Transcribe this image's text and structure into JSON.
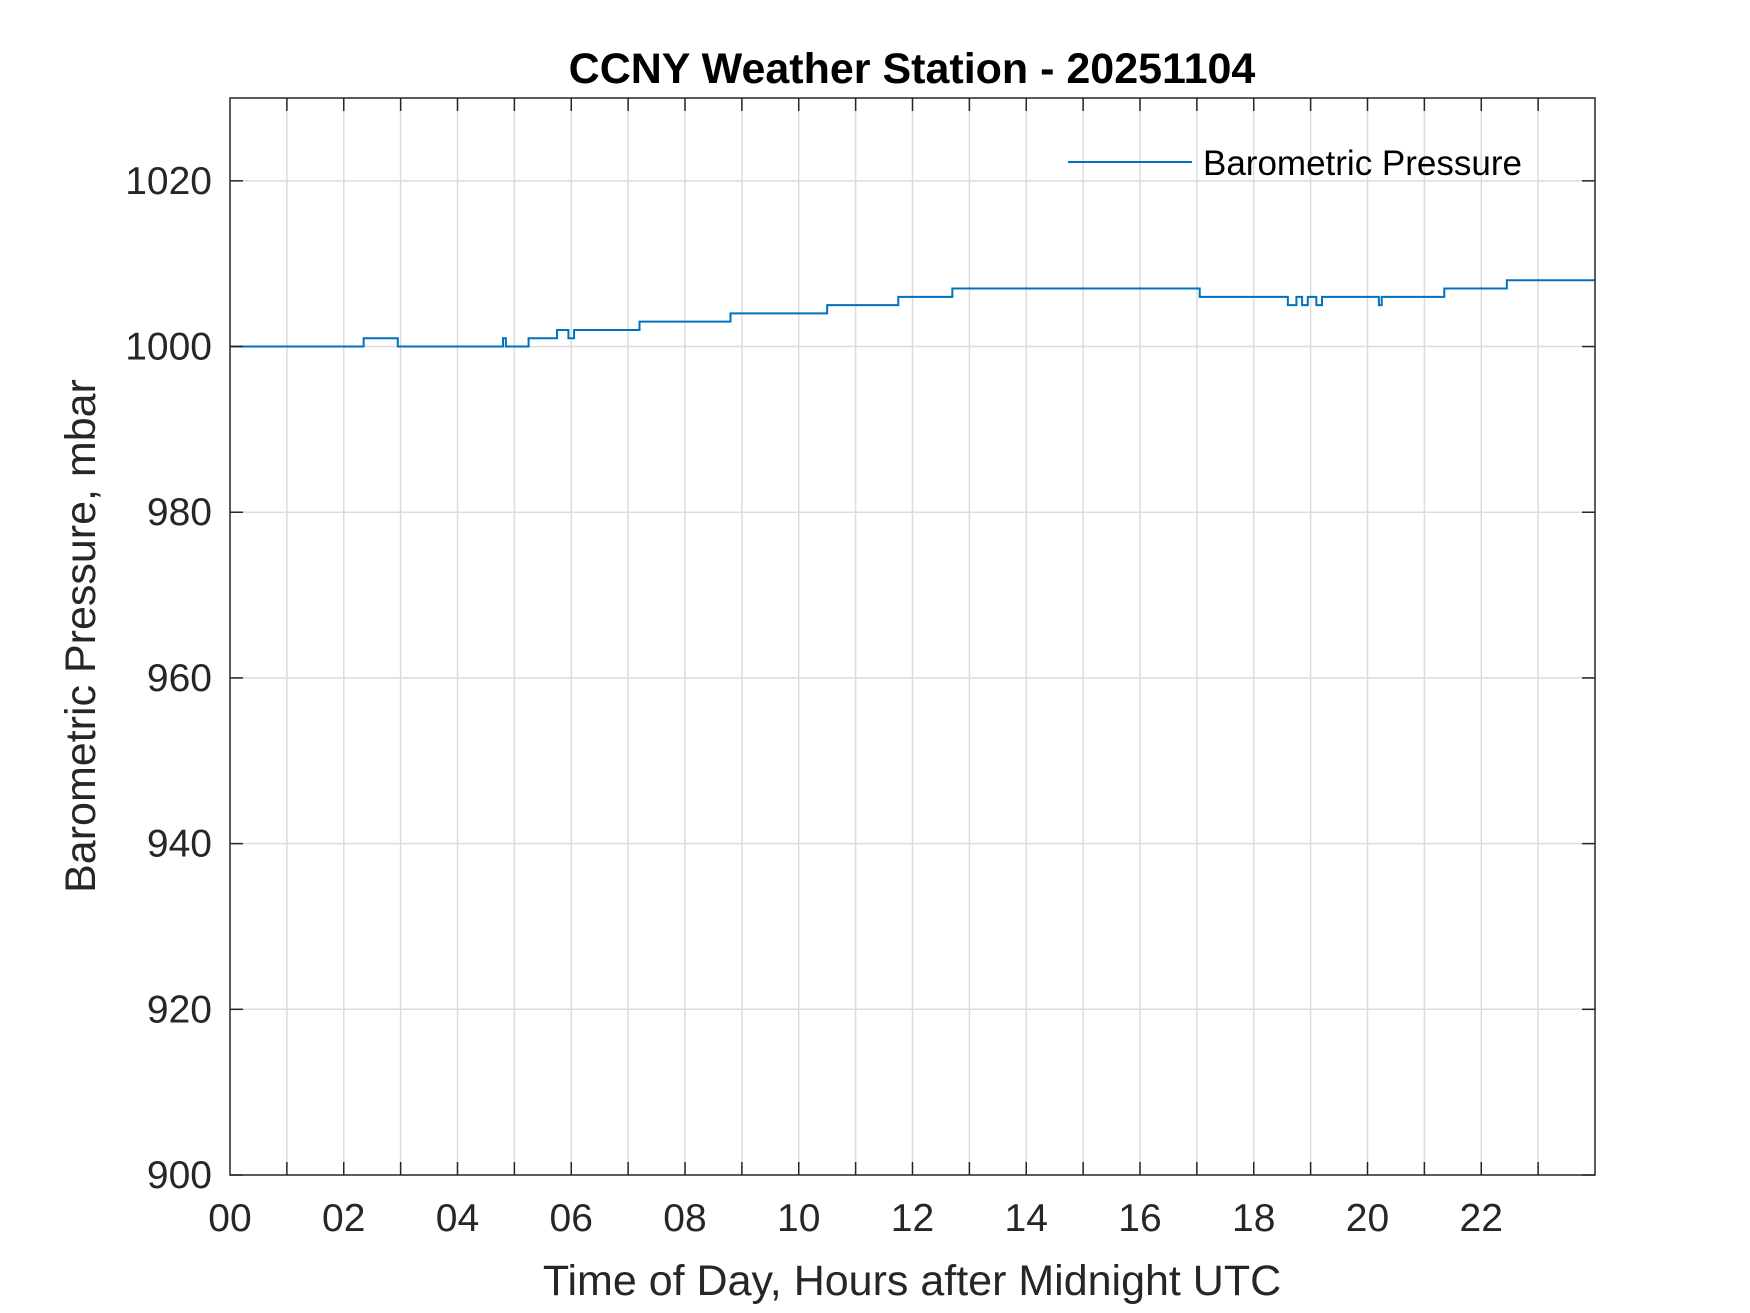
{
  "chart_data": {
    "type": "line",
    "title": "CCNY Weather Station - 20251104",
    "xlabel": "Time of Day, Hours after Midnight UTC",
    "ylabel": "Barometric Pressure, mbar",
    "xlim": [
      0,
      24
    ],
    "ylim": [
      900,
      1030
    ],
    "x_tick_labels": [
      "00",
      "02",
      "04",
      "06",
      "08",
      "10",
      "12",
      "14",
      "16",
      "18",
      "20",
      "22"
    ],
    "y_tick_labels": [
      "900",
      "920",
      "940",
      "960",
      "980",
      "1000",
      "1020"
    ],
    "grid": true,
    "legend_position": "top-right",
    "series": [
      {
        "name": "Barometric Pressure",
        "color": "#0072BD",
        "step": true,
        "x": [
          0,
          2.35,
          2.95,
          4.8,
          4.85,
          5.25,
          5.75,
          5.95,
          6.05,
          7.2,
          8.8,
          10.5,
          11.75,
          12.7,
          17.05,
          18.6,
          18.75,
          18.85,
          18.95,
          19.1,
          19.2,
          20.2,
          20.25,
          21.35,
          22.45,
          24
        ],
        "values": [
          1000,
          1001,
          1000,
          1001,
          1000,
          1001,
          1002,
          1001,
          1002,
          1003,
          1004,
          1005,
          1006,
          1007,
          1006,
          1005,
          1006,
          1005,
          1006,
          1005,
          1006,
          1005,
          1006,
          1007,
          1008,
          1008
        ]
      }
    ]
  }
}
